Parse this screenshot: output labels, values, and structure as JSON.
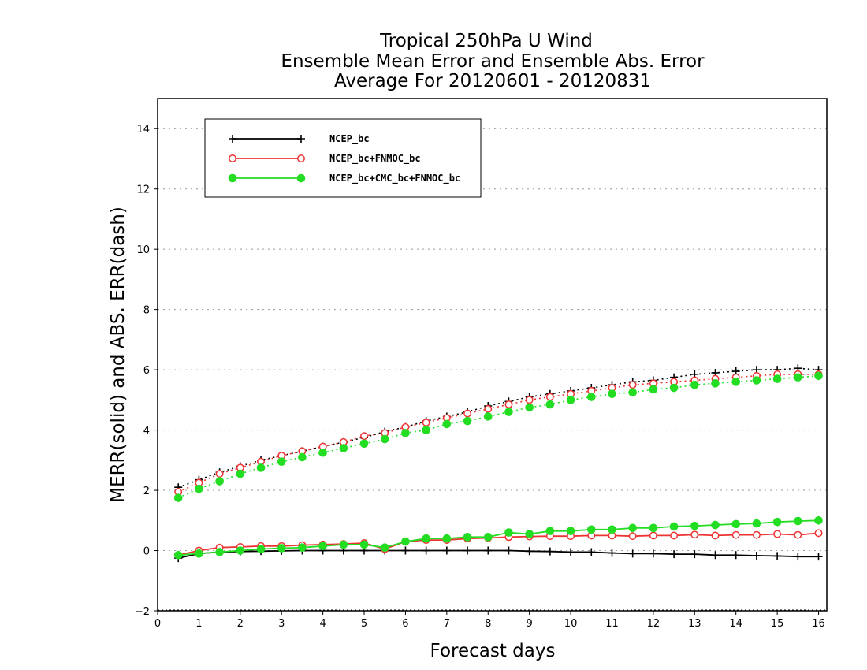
{
  "chart_data": {
    "type": "line",
    "title": [
      "Tropical 250hPa U Wind",
      "Ensemble Mean Error and Ensemble Abs. Error",
      "Average For 20120601 - 20120831"
    ],
    "xlabel": "Forecast days",
    "ylabel": "MERR(solid) and ABS. ERR(dash)",
    "xlim": [
      0,
      16.2
    ],
    "ylim": [
      -2,
      15
    ],
    "xticks": [
      0,
      1,
      2,
      3,
      4,
      5,
      6,
      7,
      8,
      9,
      10,
      11,
      12,
      13,
      14,
      15,
      16
    ],
    "yticks": [
      -2,
      0,
      2,
      4,
      6,
      8,
      10,
      12,
      14
    ],
    "grid": "horizontal-dotted",
    "legend_position": "top-left",
    "x": [
      0.5,
      1,
      1.5,
      2,
      2.5,
      3,
      3.5,
      4,
      4.5,
      5,
      5.5,
      6,
      6.5,
      7,
      7.5,
      8,
      8.5,
      9,
      9.5,
      10,
      10.5,
      11,
      11.5,
      12,
      12.5,
      13,
      13.5,
      14,
      14.5,
      15,
      15.5,
      16
    ],
    "series": [
      {
        "name": "NCEP_bc",
        "color": "#000000",
        "marker": "plus",
        "mean_error": [
          -0.25,
          -0.1,
          -0.05,
          -0.03,
          -0.02,
          -0.01,
          0.0,
          0.0,
          0.0,
          0.0,
          0.0,
          0.0,
          0.0,
          0.0,
          0.0,
          0.0,
          0.0,
          -0.02,
          -0.03,
          -0.05,
          -0.05,
          -0.08,
          -0.1,
          -0.1,
          -0.12,
          -0.12,
          -0.15,
          -0.15,
          -0.17,
          -0.18,
          -0.2,
          -0.2
        ],
        "abs_error": [
          2.1,
          2.35,
          2.6,
          2.8,
          3.0,
          3.15,
          3.3,
          3.45,
          3.6,
          3.75,
          3.95,
          4.1,
          4.3,
          4.45,
          4.6,
          4.8,
          4.95,
          5.1,
          5.2,
          5.3,
          5.4,
          5.5,
          5.6,
          5.65,
          5.75,
          5.85,
          5.9,
          5.95,
          6.0,
          6.0,
          6.05,
          6.0
        ]
      },
      {
        "name": "NCEP_bc+FNMOC_bc",
        "color": "#ee3333",
        "marker": "open-circle",
        "mean_error": [
          -0.15,
          0.0,
          0.1,
          0.12,
          0.15,
          0.15,
          0.18,
          0.2,
          0.22,
          0.25,
          0.05,
          0.3,
          0.35,
          0.35,
          0.4,
          0.42,
          0.45,
          0.47,
          0.48,
          0.48,
          0.5,
          0.5,
          0.48,
          0.5,
          0.5,
          0.53,
          0.5,
          0.52,
          0.52,
          0.55,
          0.52,
          0.58
        ],
        "abs_error": [
          1.95,
          2.25,
          2.55,
          2.75,
          2.95,
          3.15,
          3.3,
          3.45,
          3.6,
          3.8,
          3.9,
          4.1,
          4.25,
          4.4,
          4.55,
          4.7,
          4.85,
          5.0,
          5.1,
          5.2,
          5.3,
          5.4,
          5.5,
          5.55,
          5.6,
          5.65,
          5.7,
          5.75,
          5.8,
          5.85,
          5.85,
          5.85
        ]
      },
      {
        "name": "NCEP_bc+CMC_bc+FNMOC_bc",
        "color": "#22dd22",
        "marker": "filled-circle",
        "mean_error": [
          -0.15,
          -0.1,
          -0.05,
          0.0,
          0.05,
          0.08,
          0.1,
          0.15,
          0.2,
          0.2,
          0.1,
          0.3,
          0.4,
          0.4,
          0.45,
          0.45,
          0.6,
          0.55,
          0.65,
          0.65,
          0.7,
          0.7,
          0.75,
          0.75,
          0.8,
          0.82,
          0.85,
          0.88,
          0.9,
          0.95,
          0.98,
          1.0
        ],
        "abs_error": [
          1.75,
          2.05,
          2.3,
          2.55,
          2.75,
          2.95,
          3.1,
          3.25,
          3.4,
          3.55,
          3.7,
          3.9,
          4.0,
          4.2,
          4.3,
          4.45,
          4.6,
          4.75,
          4.85,
          5.0,
          5.1,
          5.2,
          5.25,
          5.35,
          5.4,
          5.5,
          5.55,
          5.6,
          5.65,
          5.7,
          5.75,
          5.8
        ]
      }
    ]
  }
}
